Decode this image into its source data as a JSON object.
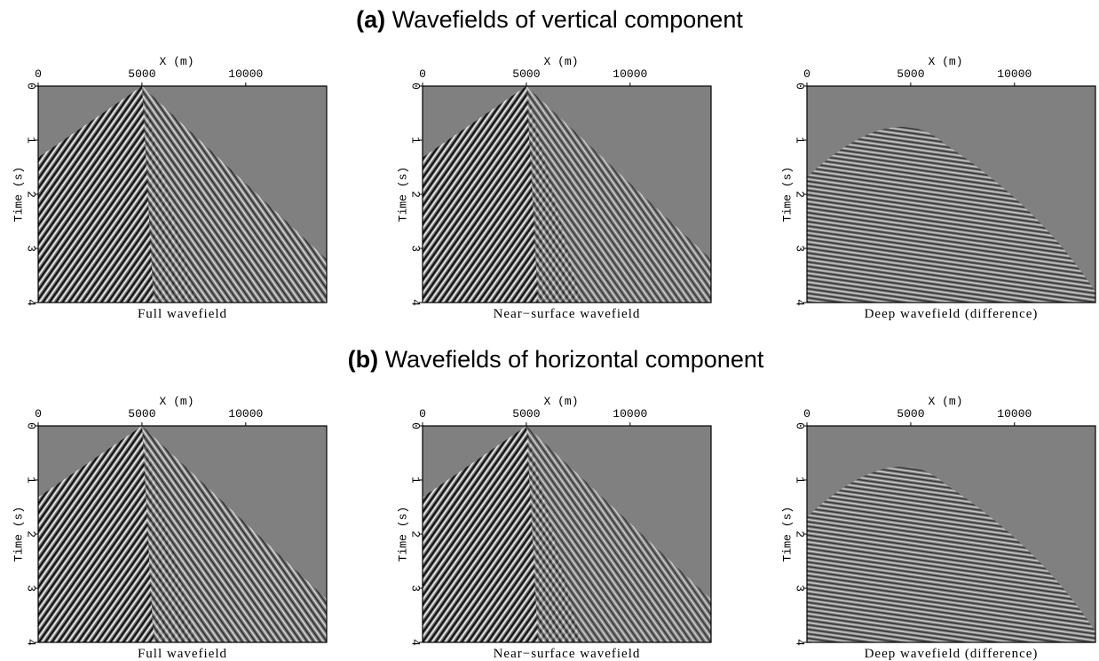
{
  "figure_titles": [
    {
      "label": "(a)",
      "text": "Wavefields of vertical component"
    },
    {
      "label": "(b)",
      "text": "Wavefields of horizontal component"
    }
  ],
  "chart_data": [
    {
      "type": "image",
      "xlabel": "X (m)",
      "ylabel": "Time (s)",
      "caption": "Full wavefield",
      "xlim": [
        0,
        13900
      ],
      "ylim": [
        4,
        0
      ],
      "xticks": [
        0,
        5000,
        10000
      ],
      "yticks": [
        0,
        1,
        2,
        3,
        4
      ]
    },
    {
      "type": "image",
      "xlabel": "X (m)",
      "ylabel": "Time (s)",
      "caption": "Near−surface wavefield",
      "xlim": [
        0,
        13900
      ],
      "ylim": [
        4,
        0
      ],
      "xticks": [
        0,
        5000,
        10000
      ],
      "yticks": [
        0,
        1,
        2,
        3,
        4
      ]
    },
    {
      "type": "image",
      "xlabel": "X (m)",
      "ylabel": "Time (s)",
      "caption": "Deep wavefield (difference)",
      "xlim": [
        0,
        13900
      ],
      "ylim": [
        4,
        0
      ],
      "xticks": [
        0,
        5000,
        10000
      ],
      "yticks": [
        0,
        1,
        2,
        3,
        4
      ]
    },
    {
      "type": "image",
      "xlabel": "X (m)",
      "ylabel": "Time (s)",
      "caption": "Full wavefield",
      "xlim": [
        0,
        13900
      ],
      "ylim": [
        4,
        0
      ],
      "xticks": [
        0,
        5000,
        10000
      ],
      "yticks": [
        0,
        1,
        2,
        3,
        4
      ]
    },
    {
      "type": "image",
      "xlabel": "X (m)",
      "ylabel": "Time (s)",
      "caption": "Near−surface wavefield",
      "xlim": [
        0,
        13900
      ],
      "ylim": [
        4,
        0
      ],
      "xticks": [
        0,
        5000,
        10000
      ],
      "yticks": [
        0,
        1,
        2,
        3,
        4
      ]
    },
    {
      "type": "image",
      "xlabel": "X (m)",
      "ylabel": "Time (s)",
      "caption": "Deep wavefield (difference)",
      "xlim": [
        0,
        13900
      ],
      "ylim": [
        4,
        0
      ],
      "xticks": [
        0,
        5000,
        10000
      ],
      "yticks": [
        0,
        1,
        2,
        3,
        4
      ]
    }
  ]
}
